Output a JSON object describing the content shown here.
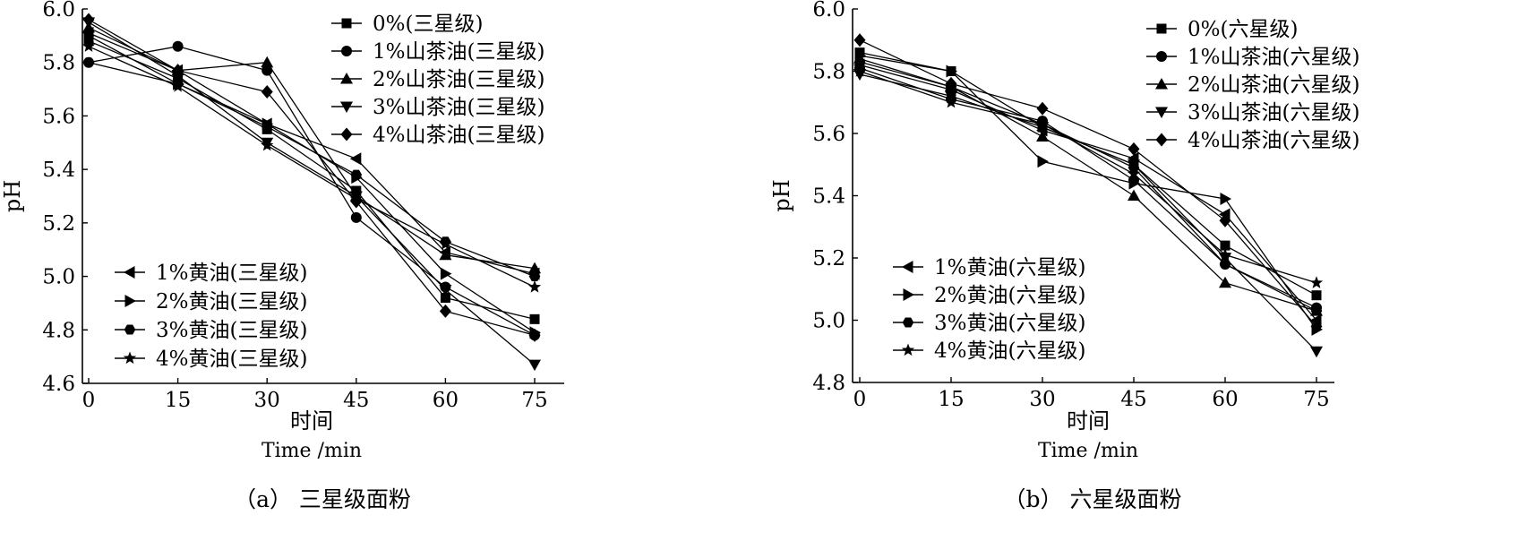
{
  "chart_data": [
    {
      "type": "line",
      "caption": "（a） 三星级面粉",
      "xlabel_cn": "时间",
      "xlabel_en": "Time /min",
      "ylabel": "pH",
      "x": [
        0,
        15,
        30,
        45,
        60,
        75
      ],
      "xticks": [
        "0",
        "15",
        "30",
        "45",
        "60",
        "75"
      ],
      "yticks": [
        "4.6",
        "4.8",
        "5.0",
        "5.2",
        "5.4",
        "5.6",
        "5.8",
        "6.0"
      ],
      "xlim": [
        -1,
        79
      ],
      "ylim": [
        4.6,
        6.0
      ],
      "grid": false,
      "legend_top": "top-right",
      "legend_bottom": "bottom-left",
      "series": [
        {
          "name": "0%(三星级)",
          "marker": "square",
          "legend": "top",
          "values": [
            5.88,
            5.74,
            5.55,
            5.32,
            4.92,
            4.84
          ]
        },
        {
          "name": "1%山茶油(三星级)",
          "marker": "circle",
          "legend": "top",
          "values": [
            5.8,
            5.86,
            5.77,
            5.22,
            4.96,
            4.78
          ]
        },
        {
          "name": "2%山茶油(三星级)",
          "marker": "triangle-up",
          "legend": "top",
          "values": [
            5.93,
            5.77,
            5.8,
            5.3,
            5.08,
            5.03
          ]
        },
        {
          "name": "3%山茶油(三星级)",
          "marker": "triangle-down",
          "legend": "top",
          "values": [
            5.95,
            5.75,
            5.5,
            5.3,
            4.95,
            4.67
          ]
        },
        {
          "name": "4%山茶油(三星级)",
          "marker": "diamond",
          "legend": "top",
          "values": [
            5.96,
            5.77,
            5.69,
            5.28,
            4.87,
            4.78
          ]
        },
        {
          "name": "1%黄油(三星级)",
          "marker": "triangle-left",
          "legend": "bottom",
          "values": [
            5.91,
            5.77,
            5.57,
            5.44,
            5.09,
            5.01
          ]
        },
        {
          "name": "2%黄油(三星级)",
          "marker": "triangle-right",
          "legend": "bottom",
          "values": [
            5.9,
            5.72,
            5.57,
            5.37,
            5.01,
            4.79
          ]
        },
        {
          "name": "3%黄油(三星级)",
          "marker": "hexagon",
          "legend": "bottom",
          "values": [
            5.8,
            5.72,
            5.56,
            5.38,
            5.13,
            5.0
          ]
        },
        {
          "name": "4%黄油(三星级)",
          "marker": "star",
          "legend": "bottom",
          "values": [
            5.86,
            5.71,
            5.49,
            5.29,
            5.12,
            4.96
          ]
        }
      ]
    },
    {
      "type": "line",
      "caption": "（b） 六星级面粉",
      "xlabel_cn": "时间",
      "xlabel_en": "Time /min",
      "ylabel": "pH",
      "x": [
        0,
        15,
        30,
        45,
        60,
        75
      ],
      "xticks": [
        "0",
        "15",
        "30",
        "45",
        "60",
        "75"
      ],
      "yticks": [
        "4.8",
        "5.0",
        "5.2",
        "5.4",
        "5.6",
        "5.8",
        "6.0"
      ],
      "xlim": [
        -0.5,
        77.5
      ],
      "ylim": [
        4.8,
        6.0
      ],
      "grid": false,
      "legend_top": "top-right",
      "legend_bottom": "bottom-left",
      "series": [
        {
          "name": "0%(六星级)",
          "marker": "square",
          "legend": "top",
          "values": [
            5.86,
            5.8,
            5.62,
            5.5,
            5.24,
            5.08
          ]
        },
        {
          "name": "1%山茶油(六星级)",
          "marker": "circle",
          "legend": "top",
          "values": [
            5.81,
            5.71,
            5.64,
            5.45,
            5.18,
            5.04
          ]
        },
        {
          "name": "2%山茶油(六星级)",
          "marker": "triangle-up",
          "legend": "top",
          "values": [
            5.84,
            5.75,
            5.59,
            5.4,
            5.12,
            5.03
          ]
        },
        {
          "name": "3%山茶油(六星级)",
          "marker": "triangle-down",
          "legend": "top",
          "values": [
            5.79,
            5.72,
            5.62,
            5.5,
            5.2,
            4.9
          ]
        },
        {
          "name": "4%山茶油(六星级)",
          "marker": "diamond",
          "legend": "top",
          "values": [
            5.9,
            5.76,
            5.68,
            5.55,
            5.32,
            4.98
          ]
        },
        {
          "name": "1%黄油(六星级)",
          "marker": "triangle-left",
          "legend": "bottom",
          "values": [
            5.82,
            5.74,
            5.61,
            5.52,
            5.34,
            5.0
          ]
        },
        {
          "name": "2%黄油(六星级)",
          "marker": "triangle-right",
          "legend": "bottom",
          "values": [
            5.85,
            5.8,
            5.51,
            5.44,
            5.39,
            4.97
          ]
        },
        {
          "name": "3%黄油(六星级)",
          "marker": "hexagon",
          "legend": "bottom",
          "values": [
            5.83,
            5.75,
            5.63,
            5.49,
            5.18,
            5.03
          ]
        },
        {
          "name": "4%黄油(六星级)",
          "marker": "star",
          "legend": "bottom",
          "values": [
            5.8,
            5.7,
            5.63,
            5.47,
            5.21,
            5.12
          ]
        }
      ]
    }
  ]
}
